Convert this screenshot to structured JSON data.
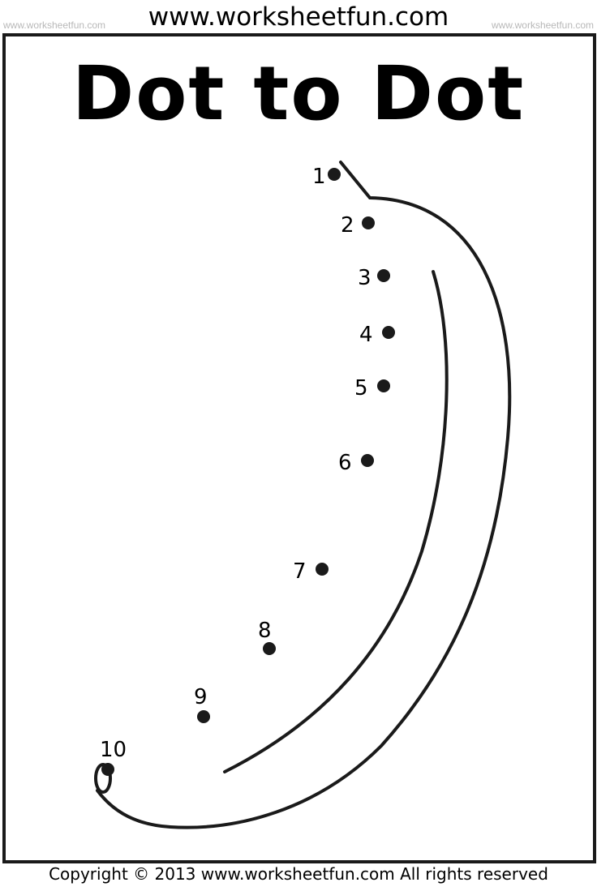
{
  "header": {
    "site": "www.worksheetfun.com",
    "watermark_left": "www.worksheetfun.com",
    "watermark_right": "www.worksheetfun.com"
  },
  "title": "Dot to Dot",
  "dots": [
    "1",
    "2",
    "3",
    "4",
    "5",
    "6",
    "7",
    "8",
    "9",
    "10"
  ],
  "footer": {
    "copyright": "Copyright © 2013 www.worksheetfun.com All rights reserved"
  }
}
